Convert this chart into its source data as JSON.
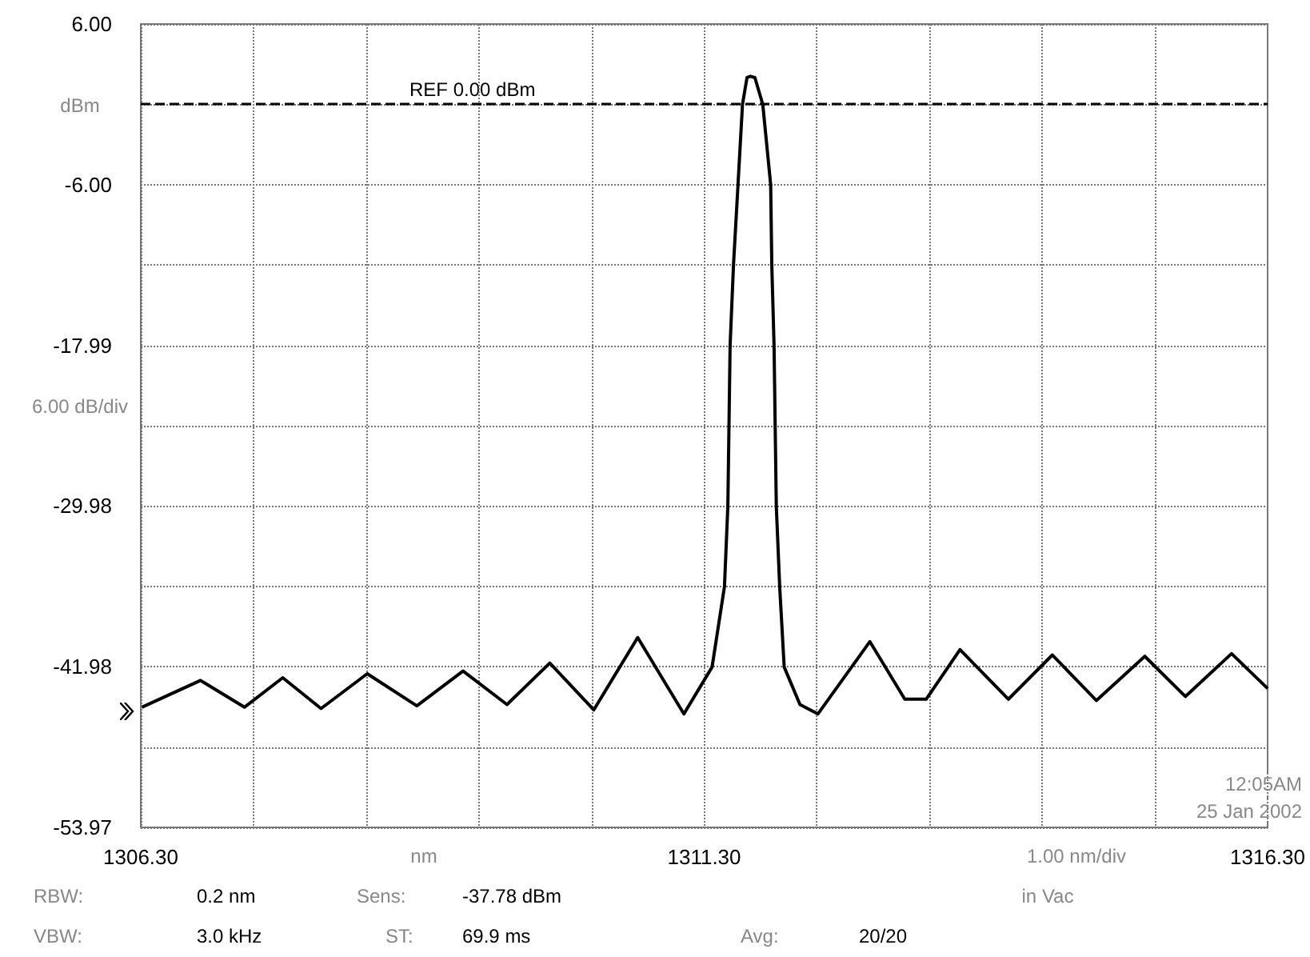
{
  "chart_data": {
    "type": "line",
    "xlabel": "nm",
    "ylabel": "dBm",
    "x": [
      1306.31,
      1306.83,
      1307.22,
      1307.56,
      1307.9,
      1308.31,
      1308.75,
      1309.16,
      1309.55,
      1309.93,
      1310.32,
      1310.71,
      1311.12,
      1311.37,
      1311.48,
      1311.51,
      1311.52,
      1311.53,
      1311.56,
      1311.6,
      1311.64,
      1311.68,
      1311.71,
      1311.75,
      1311.82,
      1311.89,
      1311.9,
      1311.92,
      1311.93,
      1311.94,
      1311.97,
      1312.01,
      1312.15,
      1312.31,
      1312.77,
      1313.08,
      1313.27,
      1313.57,
      1314.0,
      1314.39,
      1314.78,
      1315.21,
      1315.57,
      1315.98,
      1316.3
    ],
    "series": [
      {
        "color": "#000000",
        "values": [
          -45.0,
          -43.0,
          -45.0,
          -42.8,
          -45.1,
          -42.5,
          -44.9,
          -42.3,
          -44.8,
          -41.7,
          -45.2,
          -39.8,
          -45.5,
          -42.0,
          -36.0,
          -30.0,
          -24.0,
          -18.0,
          -12.0,
          -6.0,
          0.0,
          2.0,
          2.1,
          2.0,
          0.0,
          -6.0,
          -12.0,
          -18.0,
          -24.0,
          -30.0,
          -36.0,
          -42.0,
          -44.8,
          -45.5,
          -40.1,
          -44.4,
          -44.4,
          -40.7,
          -44.4,
          -41.1,
          -44.5,
          -41.2,
          -44.2,
          -41.0,
          -43.6
        ]
      }
    ],
    "xlim": [
      1306.3,
      1316.3
    ],
    "xticks": [
      {
        "value": 1306.3,
        "label": "1306.30"
      },
      {
        "value": 1307.3,
        "label": null
      },
      {
        "value": 1308.3,
        "label": null
      },
      {
        "value": 1309.3,
        "label": null
      },
      {
        "value": 1310.3,
        "label": null
      },
      {
        "value": 1311.3,
        "label": "1311.30"
      },
      {
        "value": 1312.3,
        "label": null
      },
      {
        "value": 1313.3,
        "label": null
      },
      {
        "value": 1314.3,
        "label": null
      },
      {
        "value": 1315.3,
        "label": null
      },
      {
        "value": 1316.3,
        "label": "1316.30"
      }
    ],
    "ylim": [
      -53.97,
      6.0
    ],
    "yticks": [
      {
        "value": 6.0,
        "label": "6.00"
      },
      {
        "value": 0.0,
        "label": null
      },
      {
        "value": -6.0,
        "label": "-6.00"
      },
      {
        "value": -11.99,
        "label": null
      },
      {
        "value": -17.99,
        "label": "-17.99"
      },
      {
        "value": -23.99,
        "label": null
      },
      {
        "value": -29.98,
        "label": "-29.98"
      },
      {
        "value": -35.98,
        "label": null
      },
      {
        "value": -41.98,
        "label": "-41.98"
      },
      {
        "value": -47.98,
        "label": null
      },
      {
        "value": -53.97,
        "label": "-53.97"
      }
    ],
    "grid": true,
    "marker": "none",
    "line_style": "solid",
    "ref_lines": [
      {
        "axis": "y",
        "value": 0.0,
        "label": "REF 0.00 dBm",
        "color": "#000000",
        "line_style": "dashed"
      }
    ],
    "annotations": [
      "6.00 dB/div",
      "1.00 nm/div",
      "in Vac",
      "RBW:",
      "0.2 nm",
      "Sens:",
      "-37.78 dBm",
      "VBW:",
      "3.0 kHz",
      "ST:",
      "69.9 ms",
      "Avg:",
      "20/20",
      "12:05AM",
      "25 Jan 2002"
    ]
  }
}
